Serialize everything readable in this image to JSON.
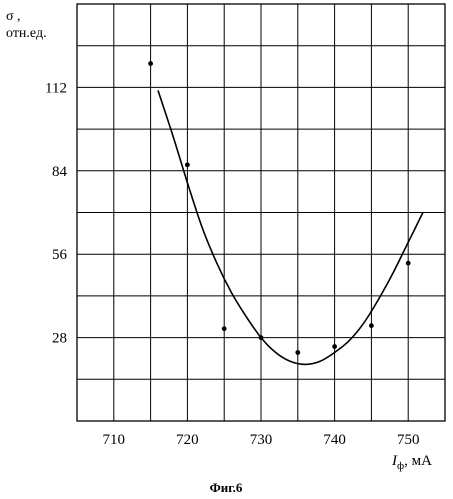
{
  "chart_data": {
    "type": "scatter",
    "title": "",
    "ylabel_symbol": "σ ,",
    "ylabel_unit": "отн.ед.",
    "xlabel_symbol": "I",
    "xlabel_subscript": "ф",
    "xlabel_unit": ", мА",
    "caption": "Фиг.6",
    "xlim": [
      705,
      755
    ],
    "ylim": [
      0,
      140
    ],
    "x_ticks": [
      710,
      720,
      730,
      740,
      750
    ],
    "y_ticks": [
      28,
      56,
      84,
      112
    ],
    "grid": true,
    "series": [
      {
        "type": "scatter",
        "x": [
          715,
          720,
          725,
          730,
          735,
          740,
          745,
          750
        ],
        "y": [
          120,
          86,
          31,
          28,
          23,
          25,
          32,
          53
        ]
      },
      {
        "type": "line",
        "x": [
          716,
          718,
          720,
          722,
          724,
          726,
          728,
          730,
          732,
          734,
          736,
          738,
          740,
          742,
          744,
          746,
          748,
          750,
          752
        ],
        "y": [
          111,
          96,
          80,
          65,
          53,
          43,
          35,
          28,
          23,
          20,
          19,
          20,
          23,
          27,
          33,
          41,
          50,
          60,
          70
        ]
      }
    ]
  }
}
